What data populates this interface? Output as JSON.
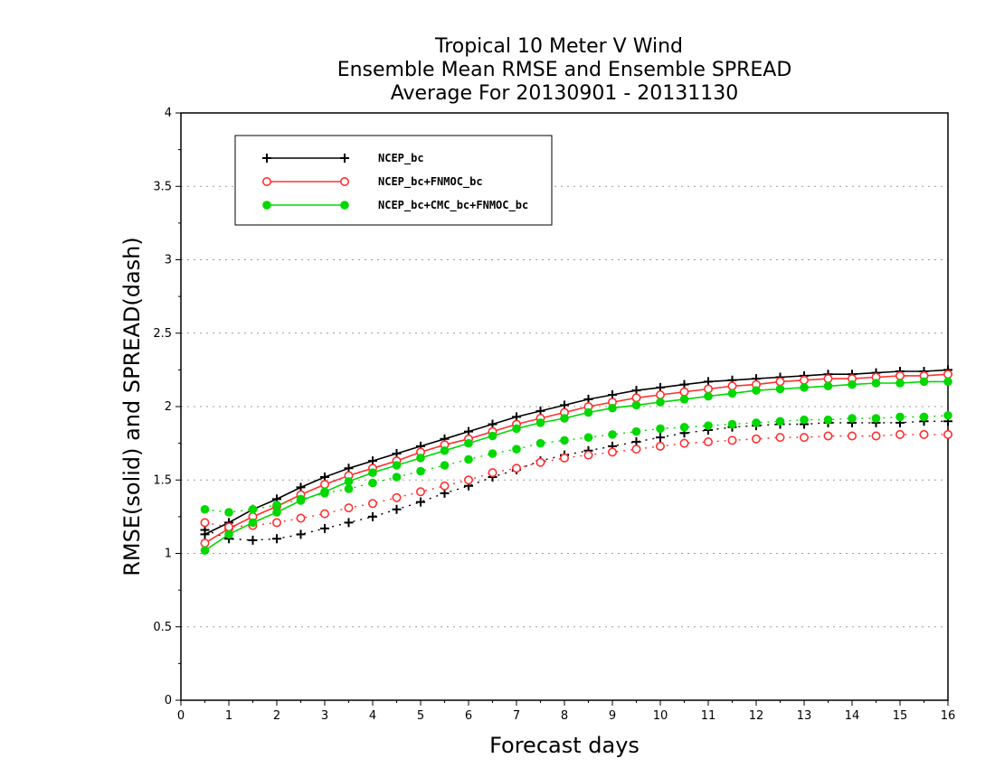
{
  "chart_data": {
    "type": "line",
    "title": [
      "Tropical 10 Meter V Wind",
      "Ensemble Mean RMSE and Ensemble SPREAD",
      "Average For 20130901 - 20131130"
    ],
    "xlabel": "Forecast days",
    "ylabel": "RMSE(solid) and SPREAD(dash)",
    "xlim": [
      0,
      16
    ],
    "ylim": [
      0,
      4
    ],
    "xticks": [
      "0",
      "1",
      "2",
      "3",
      "4",
      "5",
      "6",
      "7",
      "8",
      "9",
      "10",
      "11",
      "12",
      "13",
      "14",
      "15",
      "16"
    ],
    "yticks": [
      "0",
      "0.5",
      "1",
      "1.5",
      "2",
      "2.5",
      "3",
      "3.5",
      "4"
    ],
    "grid": "horizontal dotted",
    "legend_position": "top-left",
    "x": [
      0.5,
      1,
      1.5,
      2,
      2.5,
      3,
      3.5,
      4,
      4.5,
      5,
      5.5,
      6,
      6.5,
      7,
      7.5,
      8,
      8.5,
      9,
      9.5,
      10,
      10.5,
      11,
      11.5,
      12,
      12.5,
      13,
      13.5,
      14,
      14.5,
      15,
      15.5,
      16
    ],
    "series": [
      {
        "name": "NCEP_bc",
        "color": "#000000",
        "marker": "plus",
        "rmse": [
          1.13,
          1.21,
          1.3,
          1.37,
          1.45,
          1.52,
          1.58,
          1.63,
          1.68,
          1.73,
          1.78,
          1.83,
          1.88,
          1.93,
          1.97,
          2.01,
          2.05,
          2.08,
          2.11,
          2.13,
          2.15,
          2.17,
          2.18,
          2.19,
          2.2,
          2.21,
          2.22,
          2.22,
          2.23,
          2.24,
          2.24,
          2.25
        ],
        "spread": [
          1.16,
          1.1,
          1.09,
          1.1,
          1.13,
          1.17,
          1.21,
          1.25,
          1.3,
          1.35,
          1.41,
          1.46,
          1.52,
          1.57,
          1.63,
          1.67,
          1.7,
          1.73,
          1.76,
          1.79,
          1.82,
          1.84,
          1.86,
          1.87,
          1.88,
          1.88,
          1.89,
          1.89,
          1.89,
          1.89,
          1.9,
          1.9
        ]
      },
      {
        "name": "NCEP_bc+FNMOC_bc",
        "color": "#ff3030",
        "marker": "open-circle",
        "rmse": [
          1.07,
          1.17,
          1.25,
          1.32,
          1.4,
          1.47,
          1.53,
          1.58,
          1.63,
          1.69,
          1.74,
          1.78,
          1.83,
          1.88,
          1.92,
          1.96,
          2.0,
          2.03,
          2.06,
          2.08,
          2.1,
          2.12,
          2.14,
          2.15,
          2.17,
          2.18,
          2.19,
          2.19,
          2.2,
          2.21,
          2.21,
          2.22
        ],
        "spread": [
          1.21,
          1.18,
          1.19,
          1.21,
          1.24,
          1.27,
          1.31,
          1.34,
          1.38,
          1.42,
          1.46,
          1.5,
          1.55,
          1.58,
          1.62,
          1.65,
          1.67,
          1.69,
          1.71,
          1.73,
          1.75,
          1.76,
          1.77,
          1.78,
          1.79,
          1.79,
          1.8,
          1.8,
          1.8,
          1.81,
          1.81,
          1.81
        ]
      },
      {
        "name": "NCEP_bc+CMC_bc+FNMOC_bc",
        "color": "#00d800",
        "marker": "filled-circle",
        "rmse": [
          1.02,
          1.13,
          1.21,
          1.28,
          1.36,
          1.42,
          1.49,
          1.55,
          1.6,
          1.65,
          1.7,
          1.75,
          1.8,
          1.85,
          1.89,
          1.92,
          1.96,
          1.99,
          2.01,
          2.03,
          2.05,
          2.07,
          2.09,
          2.11,
          2.12,
          2.13,
          2.14,
          2.15,
          2.16,
          2.16,
          2.17,
          2.17
        ],
        "spread": [
          1.3,
          1.28,
          1.3,
          1.33,
          1.37,
          1.41,
          1.44,
          1.48,
          1.52,
          1.56,
          1.6,
          1.64,
          1.68,
          1.71,
          1.75,
          1.77,
          1.79,
          1.81,
          1.83,
          1.85,
          1.86,
          1.87,
          1.88,
          1.89,
          1.9,
          1.91,
          1.91,
          1.92,
          1.92,
          1.93,
          1.93,
          1.94
        ]
      }
    ]
  }
}
